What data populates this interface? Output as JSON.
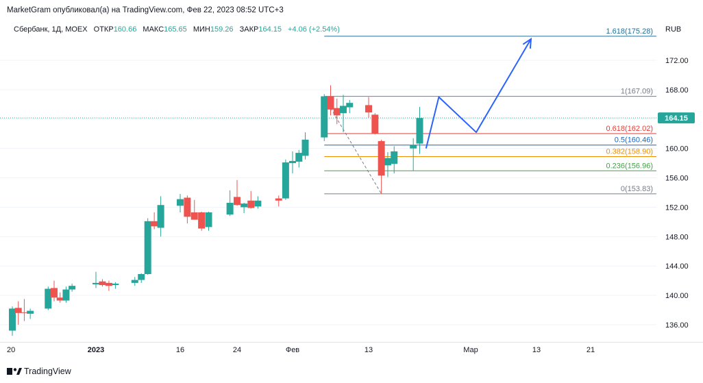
{
  "header": {
    "published": "MarketGram опубликовал(а) на TradingView.com, Фев 22, 2023 08:52 UTC+3",
    "symbol": "Сбербанк, 1Д, MOEX",
    "open_label": "ОТКР",
    "open": "160.66",
    "high_label": "МАКС",
    "high": "165.65",
    "low_label": "МИН",
    "low": "159.26",
    "close_label": "ЗАКР",
    "close": "164.15",
    "change": "+4.06 (+2.54%)"
  },
  "footer": {
    "brand": "TradingView"
  },
  "colors": {
    "up": "#26a69a",
    "down": "#ef5350",
    "forecast": "#2962ff",
    "fib_1618": "#1e6f9a",
    "fib_1": "#787b86",
    "fib_0618": "#e53935",
    "fib_05": "#1565c0",
    "fib_0382": "#ef8c00",
    "fib_0236": "#43a047",
    "fib_0": "#787b86",
    "price_tag": "#26a69a"
  },
  "chart_data": {
    "type": "candlestick",
    "currency": "RUB",
    "ylim": [
      133.5,
      177.5
    ],
    "y_ticks": [
      "172.00",
      "168.00",
      "164.00",
      "160.00",
      "156.00",
      "152.00",
      "148.00",
      "144.00",
      "140.00",
      "136.00"
    ],
    "x_ticks": [
      {
        "label": "20",
        "date": "2022-12-20"
      },
      {
        "label": "2023",
        "date": "2023-01-03"
      },
      {
        "label": "16",
        "date": "2023-01-16"
      },
      {
        "label": "24",
        "date": "2023-01-24"
      },
      {
        "label": "Фев",
        "date": "2023-02-01"
      },
      {
        "label": "13",
        "date": "2023-02-13"
      },
      {
        "label": "Мар",
        "date": "2023-03-01"
      },
      {
        "label": "13",
        "date": "2023-03-13"
      },
      {
        "label": "21",
        "date": "2023-03-21"
      }
    ],
    "candles": [
      {
        "date": "2022-12-20",
        "o": 135.2,
        "h": 138.5,
        "l": 134.5,
        "c": 138.2
      },
      {
        "date": "2022-12-21",
        "o": 138.3,
        "h": 139.2,
        "l": 136.0,
        "c": 137.6
      },
      {
        "date": "2022-12-22",
        "o": 137.7,
        "h": 139.5,
        "l": 136.5,
        "c": 137.6
      },
      {
        "date": "2022-12-23",
        "o": 137.5,
        "h": 138.2,
        "l": 136.8,
        "c": 137.9
      },
      {
        "date": "2022-12-26",
        "o": 138.2,
        "h": 141.2,
        "l": 138.0,
        "c": 140.9
      },
      {
        "date": "2022-12-27",
        "o": 141.0,
        "h": 142.0,
        "l": 139.2,
        "c": 139.7
      },
      {
        "date": "2022-12-28",
        "o": 139.7,
        "h": 140.4,
        "l": 139.0,
        "c": 139.3
      },
      {
        "date": "2022-12-29",
        "o": 139.3,
        "h": 141.2,
        "l": 139.0,
        "c": 140.8
      },
      {
        "date": "2022-12-30",
        "o": 140.8,
        "h": 141.6,
        "l": 140.5,
        "c": 141.3
      },
      {
        "date": "2023-01-03",
        "o": 141.5,
        "h": 143.2,
        "l": 141.0,
        "c": 141.7
      },
      {
        "date": "2023-01-04",
        "o": 141.9,
        "h": 142.2,
        "l": 141.2,
        "c": 141.4
      },
      {
        "date": "2023-01-05",
        "o": 141.7,
        "h": 142.0,
        "l": 140.6,
        "c": 141.3
      },
      {
        "date": "2023-01-06",
        "o": 141.4,
        "h": 141.8,
        "l": 140.9,
        "c": 141.6
      },
      {
        "date": "2023-01-09",
        "o": 141.7,
        "h": 142.5,
        "l": 141.3,
        "c": 142.1
      },
      {
        "date": "2023-01-10",
        "o": 142.1,
        "h": 143.0,
        "l": 141.7,
        "c": 142.9
      },
      {
        "date": "2023-01-11",
        "o": 142.9,
        "h": 150.5,
        "l": 142.8,
        "c": 150.1
      },
      {
        "date": "2023-01-12",
        "o": 150.1,
        "h": 151.3,
        "l": 149.0,
        "c": 149.4
      },
      {
        "date": "2023-01-13",
        "o": 149.2,
        "h": 153.5,
        "l": 148.0,
        "c": 152.3
      },
      {
        "date": "2023-01-16",
        "o": 152.2,
        "h": 153.8,
        "l": 151.3,
        "c": 153.1
      },
      {
        "date": "2023-01-17",
        "o": 153.3,
        "h": 153.6,
        "l": 149.8,
        "c": 150.7
      },
      {
        "date": "2023-01-18",
        "o": 151.3,
        "h": 153.0,
        "l": 150.3,
        "c": 150.3
      },
      {
        "date": "2023-01-19",
        "o": 151.3,
        "h": 151.4,
        "l": 148.8,
        "c": 149.1
      },
      {
        "date": "2023-01-20",
        "o": 149.3,
        "h": 151.4,
        "l": 148.8,
        "c": 151.3
      },
      {
        "date": "2023-01-23",
        "o": 151.0,
        "h": 154.3,
        "l": 150.8,
        "c": 152.6
      },
      {
        "date": "2023-01-24",
        "o": 153.4,
        "h": 155.7,
        "l": 152.2,
        "c": 152.3
      },
      {
        "date": "2023-01-25",
        "o": 152.0,
        "h": 152.6,
        "l": 151.2,
        "c": 152.5
      },
      {
        "date": "2023-01-26",
        "o": 152.9,
        "h": 154.2,
        "l": 151.8,
        "c": 151.9
      },
      {
        "date": "2023-01-27",
        "o": 152.1,
        "h": 153.5,
        "l": 151.8,
        "c": 152.9
      },
      {
        "date": "2023-01-30",
        "o": 153.2,
        "h": 153.6,
        "l": 152.1,
        "c": 152.9
      },
      {
        "date": "2023-01-31",
        "o": 153.2,
        "h": 158.5,
        "l": 153.0,
        "c": 158.1
      },
      {
        "date": "2023-02-01",
        "o": 158.0,
        "h": 159.6,
        "l": 156.6,
        "c": 158.3
      },
      {
        "date": "2023-02-02",
        "o": 158.2,
        "h": 159.8,
        "l": 157.4,
        "c": 159.4
      },
      {
        "date": "2023-02-03",
        "o": 159.0,
        "h": 162.2,
        "l": 158.5,
        "c": 161.2
      },
      {
        "date": "2023-02-06",
        "o": 161.5,
        "h": 167.4,
        "l": 161.0,
        "c": 167.1
      },
      {
        "date": "2023-02-07",
        "o": 167.1,
        "h": 168.6,
        "l": 164.5,
        "c": 165.3
      },
      {
        "date": "2023-02-08",
        "o": 165.5,
        "h": 166.8,
        "l": 163.3,
        "c": 164.5
      },
      {
        "date": "2023-02-09",
        "o": 164.8,
        "h": 167.3,
        "l": 162.2,
        "c": 165.8
      },
      {
        "date": "2023-02-10",
        "o": 165.6,
        "h": 166.6,
        "l": 164.8,
        "c": 166.2
      },
      {
        "date": "2023-02-13",
        "o": 165.9,
        "h": 167.0,
        "l": 164.2,
        "c": 164.9
      },
      {
        "date": "2023-02-14",
        "o": 164.6,
        "h": 164.8,
        "l": 161.9,
        "c": 162.0
      },
      {
        "date": "2023-02-15",
        "o": 161.0,
        "h": 161.2,
        "l": 153.8,
        "c": 156.3
      },
      {
        "date": "2023-02-16",
        "o": 157.7,
        "h": 159.5,
        "l": 156.1,
        "c": 158.7
      },
      {
        "date": "2023-02-17",
        "o": 157.9,
        "h": 160.3,
        "l": 156.6,
        "c": 159.6
      },
      {
        "date": "2023-02-20",
        "o": 160.0,
        "h": 161.4,
        "l": 157.0,
        "c": 160.5
      },
      {
        "date": "2023-02-21",
        "o": 160.66,
        "h": 165.65,
        "l": 159.26,
        "c": 164.15
      }
    ],
    "last_price": {
      "value": 164.15,
      "label": "164.15"
    },
    "fib_retracement": {
      "from_date": "2023-02-06",
      "to_date": "2023-03-13",
      "levels": [
        {
          "ratio": 1.618,
          "price": 175.28,
          "label": "1.618(175.28)",
          "color_key": "fib_1618"
        },
        {
          "ratio": 1,
          "price": 167.09,
          "label": "1(167.09)",
          "color_key": "fib_1"
        },
        {
          "ratio": 0.618,
          "price": 162.02,
          "label": "0.618(162.02)",
          "color_key": "fib_0618"
        },
        {
          "ratio": 0.5,
          "price": 160.46,
          "label": "0.5(160.46)",
          "color_key": "fib_05"
        },
        {
          "ratio": 0.382,
          "price": 158.9,
          "label": "0.382(158.90)",
          "color_key": "fib_0382"
        },
        {
          "ratio": 0.236,
          "price": 156.96,
          "label": "0.236(156.96)",
          "color_key": "fib_0236"
        },
        {
          "ratio": 0,
          "price": 153.83,
          "label": "0(153.83)",
          "color_key": "fib_0"
        }
      ],
      "trend_line": [
        {
          "date": "2023-02-07",
          "price": 165.5
        },
        {
          "date": "2023-02-15",
          "price": 153.83
        }
      ]
    },
    "forecast_path": [
      {
        "date": "2023-02-22",
        "price": 160.0
      },
      {
        "date": "2023-02-24",
        "price": 167.0
      },
      {
        "date": "2023-03-02",
        "price": 162.2
      },
      {
        "date": "2023-03-12",
        "price": 174.9
      }
    ]
  }
}
